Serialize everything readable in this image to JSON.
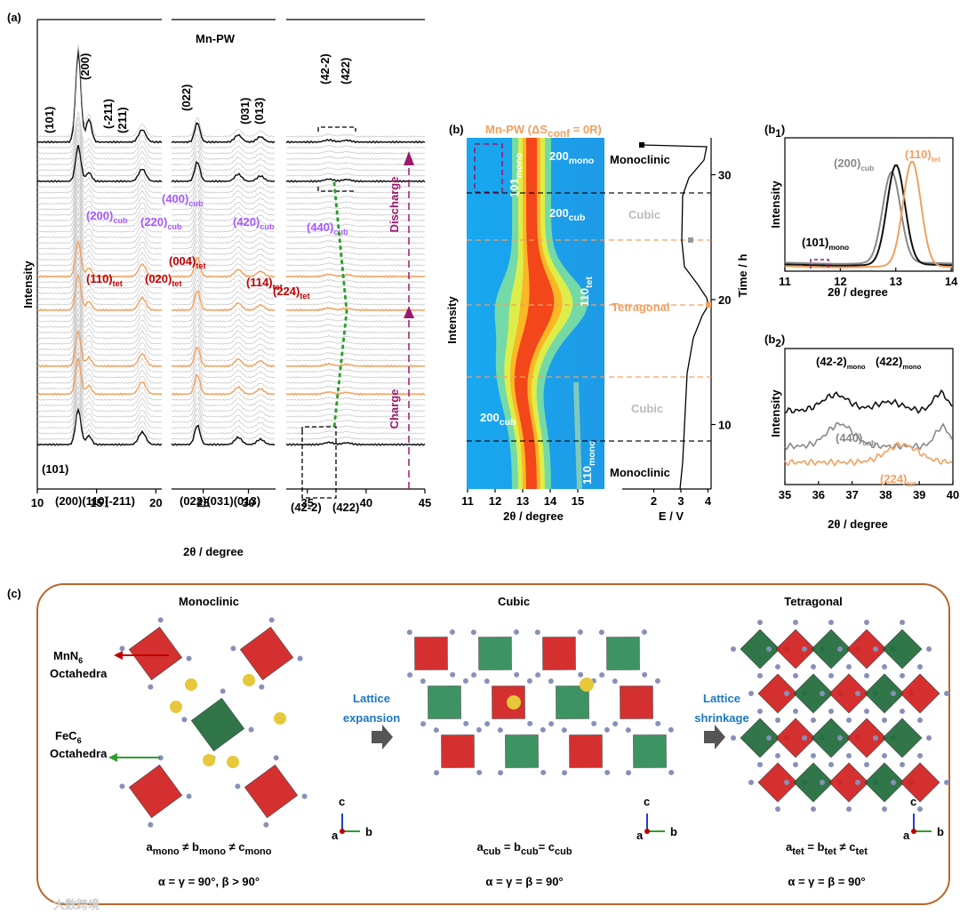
{
  "panel_a": {
    "label": "(a)",
    "title": "Mn-PW",
    "ylabel": "Intensity",
    "xlabel": "2θ / degree",
    "segments": [
      {
        "xlim": [
          10,
          20.5
        ],
        "xticks": [
          10,
          15,
          20
        ]
      },
      {
        "xlim": [
          21.5,
          33
        ],
        "xticks": [
          25,
          30
        ]
      },
      {
        "xlim": [
          33.2,
          45
        ],
        "xticks": [
          35,
          40,
          45
        ]
      }
    ],
    "top_peaks": [
      "(101)",
      "(200)",
      "(-211)",
      "(211)",
      "(022)",
      "(031)",
      "(013)",
      "(42-2)",
      "(422)"
    ],
    "bottom_peaks": [
      "(101)",
      "(200)(110)",
      "(-211)",
      "(022)(031)(013)",
      "(42-2)",
      "(422)"
    ],
    "cub_labels": [
      {
        "t": "(400)",
        "s": "cub"
      },
      {
        "t": "(200)",
        "s": "cub"
      },
      {
        "t": "(220)",
        "s": "cub"
      },
      {
        "t": "(420)",
        "s": "cub"
      },
      {
        "t": "(440)",
        "s": "cub"
      }
    ],
    "tet_labels": [
      {
        "t": "(110)",
        "s": "tet"
      },
      {
        "t": "(020)",
        "s": "tet"
      },
      {
        "t": "(004)",
        "s": "tet"
      },
      {
        "t": "(114)",
        "s": "tet"
      },
      {
        "t": "(224)",
        "s": "tet"
      }
    ],
    "arrows": [
      "Discharge",
      "Charge"
    ]
  },
  "panel_b": {
    "label": "(b)",
    "title": {
      "t": "Mn-PW (ΔS",
      "s": "conf",
      "r": " = 0R)"
    },
    "ylabel": "Intensity",
    "xlabel": "2θ / degree",
    "xticks": [
      11,
      12,
      13,
      14,
      15
    ],
    "e_label": "E / V",
    "eticks": [
      2,
      3,
      4
    ],
    "time_label": "Time / h",
    "tticks": [
      10,
      20,
      30
    ],
    "map_labels": [
      {
        "t": "200",
        "s": "mono"
      },
      {
        "t": "101",
        "s": "mono"
      },
      {
        "t": "200",
        "s": "cub"
      },
      {
        "t": "110",
        "s": "tet"
      },
      {
        "t": "200",
        "s": "cub"
      },
      {
        "t": "110",
        "s": "mono"
      }
    ],
    "phases": [
      "Monoclinic",
      "Cubic",
      "Tetragonal",
      "Cubic",
      "Monoclinic"
    ]
  },
  "panel_b1": {
    "label": {
      "t": "(b",
      "s": "1",
      "r": ")"
    },
    "ylabel": "Intensity",
    "xlabel": "2θ / degree",
    "xticks": [
      11,
      12,
      13,
      14
    ],
    "labels": [
      {
        "t": "(200)",
        "s": "cub"
      },
      {
        "t": "(110)",
        "s": "tet"
      },
      {
        "t": "(101)",
        "s": "mono"
      }
    ]
  },
  "panel_b2": {
    "label": {
      "t": "(b",
      "s": "2",
      "r": ")"
    },
    "ylabel": "Intensity",
    "xlabel": "2θ / degree",
    "xticks": [
      35,
      36,
      37,
      38,
      39,
      40
    ],
    "labels": [
      {
        "t": "(42-2)",
        "s": "mono"
      },
      {
        "t": "(422)",
        "s": "mono"
      },
      {
        "t": "(440)",
        "s": "cub"
      },
      {
        "t": "(224)",
        "s": "tet"
      }
    ]
  },
  "panel_c": {
    "label": "(c)",
    "titles": [
      "Monoclinic",
      "Cubic",
      "Tetragonal"
    ],
    "mn": {
      "t": "MnN",
      "s": "6"
    },
    "mn2": "Octahedra",
    "fe": {
      "t": "FeC",
      "s": "6"
    },
    "fe2": "Octahedra",
    "expansion": [
      "Lattice",
      "expansion"
    ],
    "shrinkage": [
      "Lattice",
      "shrinkage"
    ],
    "eq1": [
      [
        {
          "t": "a",
          "s": "mono"
        },
        {
          "t": " ≠ b",
          "s": "mono"
        },
        {
          "t": " ≠ c",
          "s": "mono"
        }
      ],
      [
        {
          "t": "a",
          "s": "cub"
        },
        {
          "t": " = b",
          "s": "cub"
        },
        {
          "t": "= c",
          "s": "cub"
        }
      ],
      [
        {
          "t": "a",
          "s": "tet"
        },
        {
          "t": " = b",
          "s": "tet"
        },
        {
          "t": " ≠ c",
          "s": "tet"
        }
      ]
    ],
    "eq2": [
      "α = γ = 90°, β > 90°",
      "α = γ = β = 90°",
      "α = γ = β = 90°"
    ],
    "axes": [
      "c",
      "b",
      "a"
    ]
  },
  "watermark": "大数跨境"
}
